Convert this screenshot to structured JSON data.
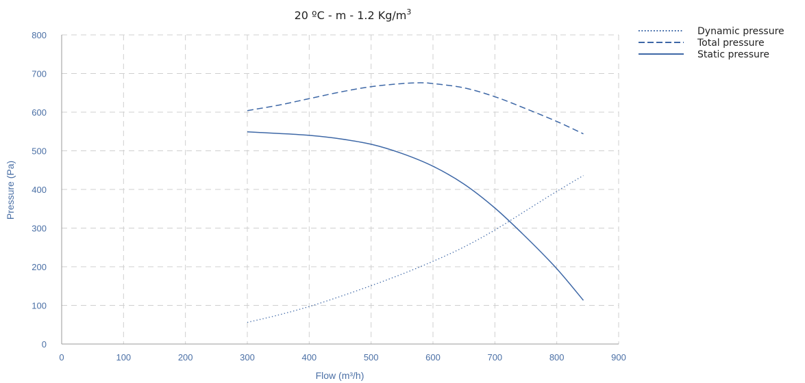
{
  "chart_data": {
    "type": "line",
    "title": "20 ºC - m - 1.2 Kg/m",
    "title_superscript": "3",
    "xlabel": "Flow (m³/h)",
    "ylabel": "Pressure (Pa)",
    "xlim": [
      0,
      900
    ],
    "ylim": [
      0,
      800
    ],
    "xticks": [
      0,
      100,
      200,
      300,
      400,
      500,
      600,
      700,
      800,
      900
    ],
    "yticks": [
      0,
      100,
      200,
      300,
      400,
      500,
      600,
      700,
      800
    ],
    "grid": true,
    "legend_position": "top-right",
    "colors": {
      "series": "#3d67a6",
      "tick_labels": "#4a6fa5",
      "grid": "#cfcfcf"
    },
    "series": [
      {
        "name": "Dynamic pressure",
        "style": "dotted",
        "points": [
          [
            300,
            56
          ],
          [
            350,
            75
          ],
          [
            400,
            97
          ],
          [
            450,
            123
          ],
          [
            500,
            151
          ],
          [
            550,
            181
          ],
          [
            600,
            214
          ],
          [
            650,
            251
          ],
          [
            700,
            295
          ],
          [
            750,
            345
          ],
          [
            800,
            395
          ],
          [
            843,
            436
          ]
        ]
      },
      {
        "name": "Total pressure",
        "style": "dashed",
        "points": [
          [
            300,
            604
          ],
          [
            350,
            618
          ],
          [
            400,
            635
          ],
          [
            450,
            652
          ],
          [
            500,
            666
          ],
          [
            550,
            674
          ],
          [
            580,
            676
          ],
          [
            600,
            674
          ],
          [
            650,
            663
          ],
          [
            700,
            640
          ],
          [
            750,
            609
          ],
          [
            800,
            576
          ],
          [
            843,
            544
          ]
        ]
      },
      {
        "name": "Static pressure",
        "style": "solid",
        "points": [
          [
            300,
            549
          ],
          [
            350,
            545
          ],
          [
            400,
            540
          ],
          [
            450,
            531
          ],
          [
            500,
            517
          ],
          [
            550,
            493
          ],
          [
            600,
            460
          ],
          [
            650,
            414
          ],
          [
            700,
            352
          ],
          [
            750,
            277
          ],
          [
            800,
            195
          ],
          [
            843,
            113
          ]
        ]
      }
    ]
  }
}
